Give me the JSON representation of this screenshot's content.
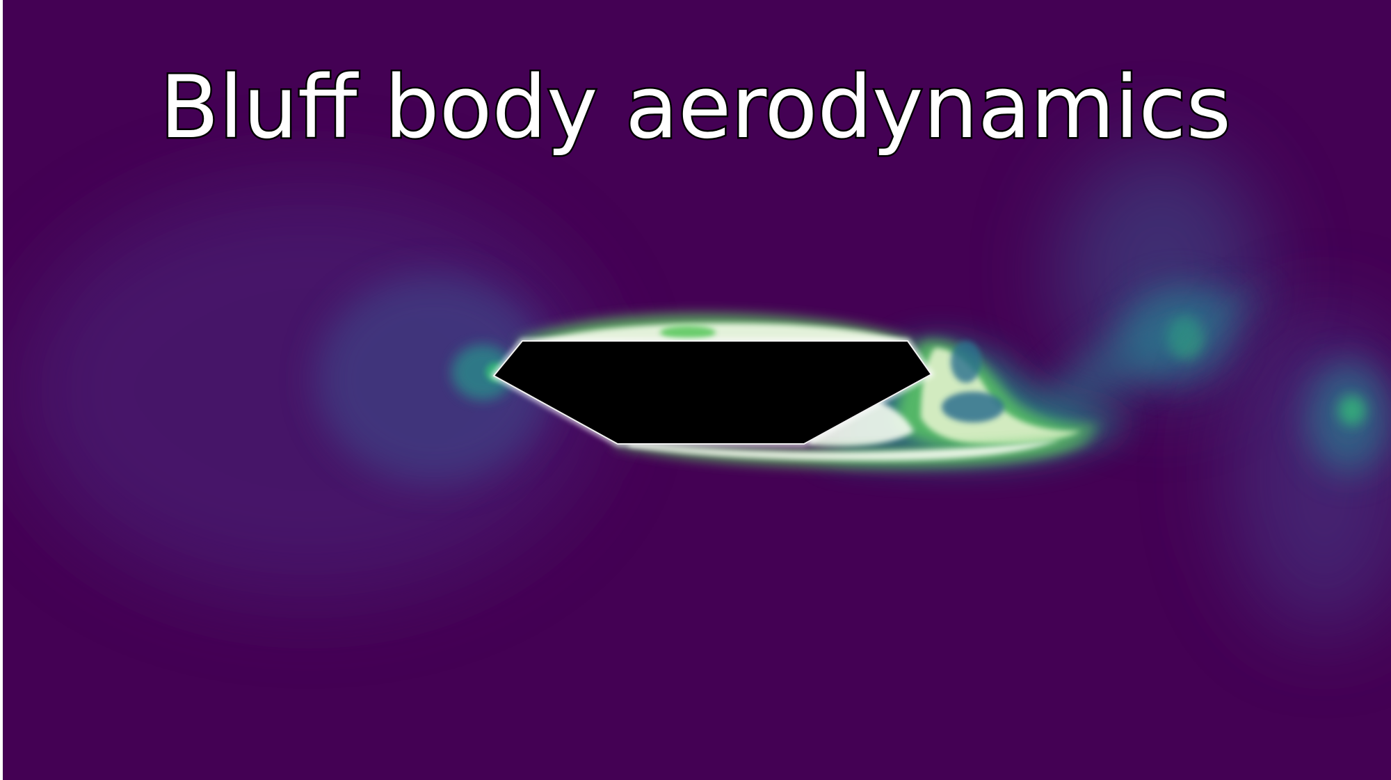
{
  "title": "Bluff body aerodynamics",
  "colors": {
    "background": "#440154",
    "body": "#000000",
    "low": "#482878",
    "mid": "#21918c",
    "high": "#22a884",
    "peak": "#ffffff",
    "title_fill": "#ffffff",
    "title_outline": "#000000"
  }
}
